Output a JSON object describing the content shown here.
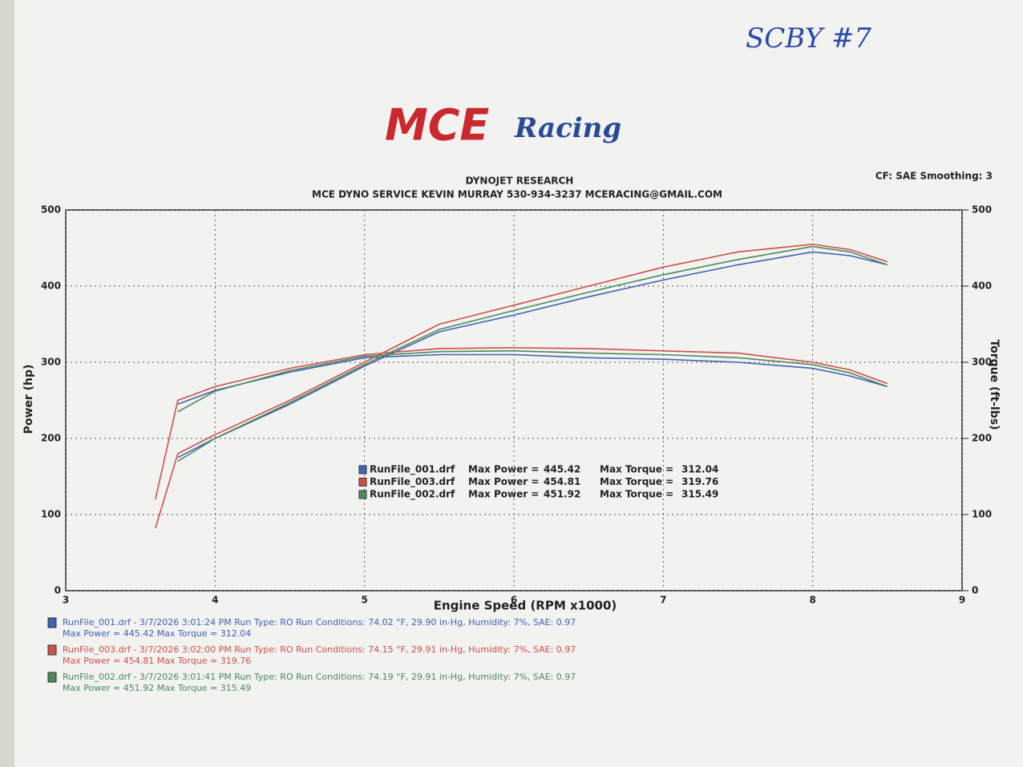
{
  "chart_data": {
    "type": "line",
    "handwriting": "SCBY #7",
    "logo": {
      "brand": "MCE",
      "script": "Racing"
    },
    "title": "DYNOJET RESEARCH",
    "subtitle": "MCE DYNO SERVICE KEVIN MURRAY 530-934-3237 MCERACING@GMAIL.COM",
    "settings_note": "CF: SAE  Smoothing: 3",
    "x_label": "Engine Speed (RPM x1000)",
    "y_label": "Power (hp)",
    "y2_label": "Torque (ft-lbs)",
    "x": [
      3.6,
      3.75,
      4.0,
      4.5,
      5.0,
      5.5,
      6.0,
      6.5,
      7.0,
      7.5,
      8.0,
      8.25,
      8.5
    ],
    "xlim": [
      3,
      9
    ],
    "xticks": [
      3,
      4,
      5,
      6,
      7,
      8,
      9
    ],
    "ylim": [
      0,
      500
    ],
    "yticks": [
      0,
      100,
      200,
      300,
      400,
      500
    ],
    "y2lim": [
      0,
      500
    ],
    "y2ticks": [
      0,
      100,
      200,
      300,
      400,
      500
    ],
    "grid": true,
    "max_power_label": "Max Power =",
    "max_torque_label": "Max Torque =",
    "series": [
      {
        "name": "RunFile_001.drf",
        "color": "#3f63b5",
        "values": [
          null,
          175,
          200,
          245,
          295,
          340,
          362,
          386,
          408,
          428,
          445,
          440,
          428
        ],
        "torque": [
          null,
          245,
          263,
          287,
          306,
          310,
          310,
          306,
          304,
          300,
          292,
          282,
          268
        ],
        "max_power": 445.42,
        "max_torque": 312.04
      },
      {
        "name": "RunFile_003.drf",
        "color": "#cf4f49",
        "values": [
          82,
          180,
          205,
          250,
          300,
          350,
          375,
          400,
          425,
          445,
          455,
          448,
          432
        ],
        "torque": [
          120,
          250,
          268,
          292,
          310,
          318,
          319,
          318,
          315,
          312,
          300,
          290,
          272
        ],
        "max_power": 454.81,
        "max_torque": 319.76
      },
      {
        "name": "RunFile_002.drf",
        "color": "#4a8a5c",
        "values": [
          null,
          170,
          200,
          247,
          297,
          343,
          368,
          392,
          415,
          435,
          452,
          445,
          428
        ],
        "torque": [
          null,
          235,
          262,
          289,
          308,
          314,
          315,
          312,
          310,
          306,
          297,
          286,
          268
        ],
        "max_power": 451.92,
        "max_torque": 315.49
      }
    ],
    "run_info": [
      {
        "line1": "RunFile_001.drf - 3/7/2026 3:01:24 PM  Run Type: RO  Run Conditions: 74.02 °F, 29.90 in-Hg,  Humidity: 7%, SAE: 0.97",
        "line2": "Max Power = 445.42  Max Torque = 312.04"
      },
      {
        "line1": "RunFile_003.drf - 3/7/2026 3:02:00 PM  Run Type: RO  Run Conditions: 74.15 °F, 29.91 in-Hg,  Humidity: 7%, SAE: 0.97",
        "line2": "Max Power = 454.81  Max Torque = 319.76"
      },
      {
        "line1": "RunFile_002.drf - 3/7/2026 3:01:41 PM  Run Type: RO  Run Conditions: 74.19 °F, 29.91 in-Hg,  Humidity: 7%, SAE: 0.97",
        "line2": "Max Power = 451.92  Max Torque = 315.49"
      }
    ]
  }
}
